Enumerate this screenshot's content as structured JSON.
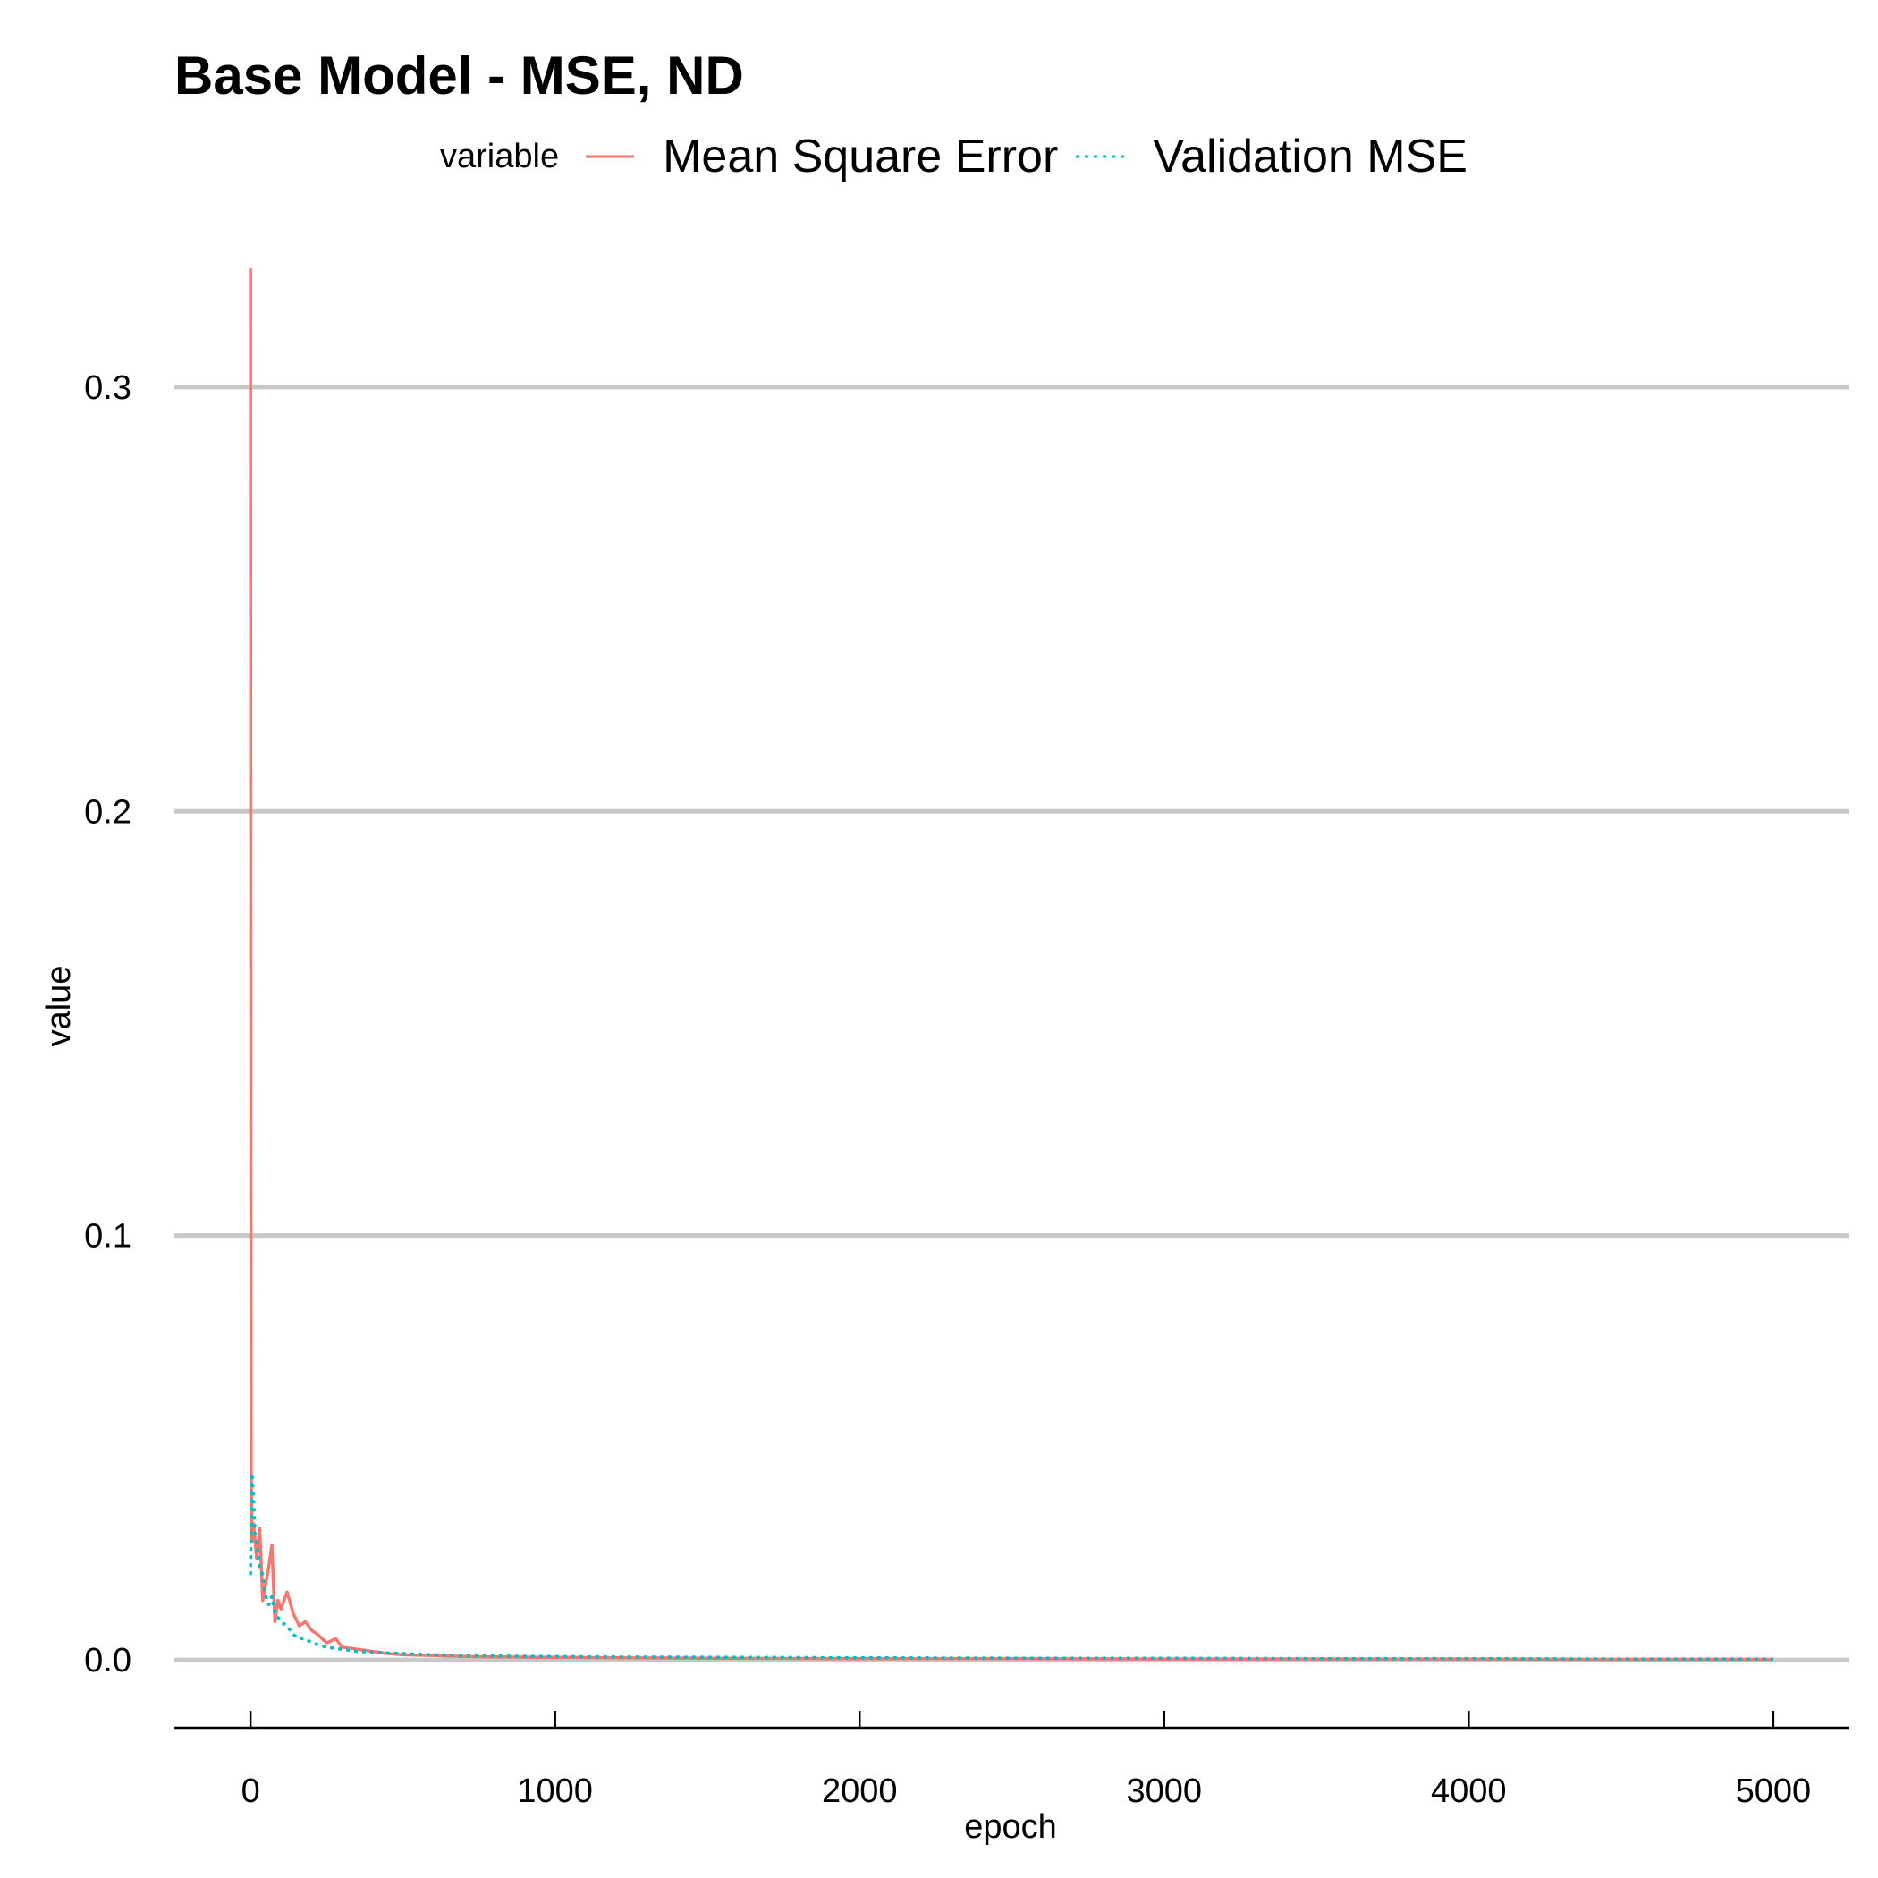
{
  "colors": {
    "series_train": "#F8766D",
    "series_val": "#00BFC4",
    "grid": "#C8C8C8",
    "axis": "#000000"
  },
  "chart_data": {
    "type": "line",
    "title": "Base Model - MSE, ND",
    "xlabel": "epoch",
    "ylabel": "value",
    "xlim": [
      -250,
      5250
    ],
    "ylim": [
      -0.016,
      0.328
    ],
    "x_ticks": [
      0,
      1000,
      2000,
      3000,
      4000,
      5000
    ],
    "x_tick_labels": [
      "0",
      "1000",
      "2000",
      "3000",
      "4000",
      "5000"
    ],
    "y_ticks": [
      0.0,
      0.1,
      0.2,
      0.3
    ],
    "y_tick_labels": [
      "0.0",
      "0.1",
      "0.2",
      "0.3"
    ],
    "grid": "horizontal-major",
    "legend": {
      "title": "variable",
      "position": "top",
      "entries": [
        "Mean Square Error",
        "Validation MSE"
      ]
    },
    "series": [
      {
        "name": "Mean Square Error",
        "line": "solid",
        "x": [
          0,
          1,
          2,
          5,
          10,
          20,
          30,
          40,
          50,
          60,
          70,
          80,
          90,
          100,
          120,
          140,
          160,
          180,
          200,
          220,
          250,
          280,
          300,
          350,
          400,
          450,
          500,
          600,
          700,
          800,
          1000,
          1200,
          1500,
          2000,
          2500,
          3000,
          3500,
          4000,
          4500,
          5000
        ],
        "values": [
          0.328,
          0.12,
          0.045,
          0.028,
          0.032,
          0.024,
          0.031,
          0.014,
          0.018,
          0.022,
          0.027,
          0.009,
          0.014,
          0.012,
          0.016,
          0.011,
          0.008,
          0.009,
          0.007,
          0.006,
          0.004,
          0.005,
          0.003,
          0.0025,
          0.002,
          0.0015,
          0.0012,
          0.001,
          0.0008,
          0.0007,
          0.0006,
          0.0005,
          0.0004,
          0.0003,
          0.0003,
          0.0002,
          0.0002,
          0.0002,
          0.0001,
          0.0001
        ]
      },
      {
        "name": "Validation MSE",
        "line": "dotted",
        "x": [
          0,
          5,
          10,
          15,
          20,
          30,
          40,
          50,
          60,
          70,
          80,
          90,
          100,
          120,
          140,
          160,
          180,
          200,
          250,
          300,
          350,
          400,
          500,
          600,
          700,
          800,
          1000,
          1200,
          1500,
          2000,
          2500,
          3000,
          3500,
          4000,
          4500,
          5000
        ],
        "values": [
          0.02,
          0.044,
          0.038,
          0.03,
          0.028,
          0.022,
          0.02,
          0.015,
          0.013,
          0.015,
          0.011,
          0.01,
          0.009,
          0.008,
          0.006,
          0.005,
          0.005,
          0.004,
          0.003,
          0.0025,
          0.002,
          0.0018,
          0.0015,
          0.0012,
          0.001,
          0.0009,
          0.0008,
          0.0007,
          0.0006,
          0.0005,
          0.0004,
          0.0004,
          0.0003,
          0.0003,
          0.0002,
          0.0002
        ]
      }
    ]
  }
}
